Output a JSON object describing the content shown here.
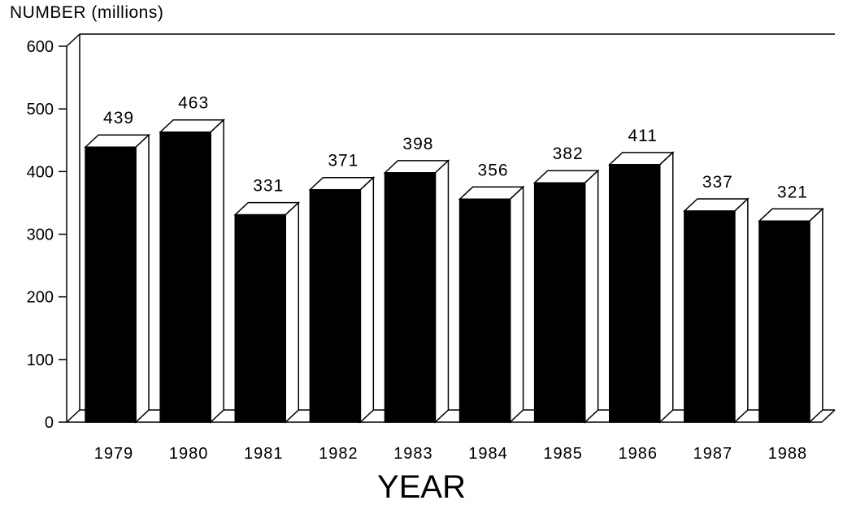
{
  "chart_data": {
    "type": "bar",
    "style": "3d",
    "categories": [
      "1979",
      "1980",
      "1981",
      "1982",
      "1983",
      "1984",
      "1985",
      "1986",
      "1987",
      "1988"
    ],
    "values": [
      439,
      463,
      331,
      371,
      398,
      356,
      382,
      411,
      337,
      321
    ],
    "data_labels": [
      "439",
      "463",
      "331",
      "371",
      "398",
      "356",
      "382",
      "411",
      "337",
      "321"
    ],
    "ylabel": "NUMBER (millions)",
    "xlabel": "YEAR",
    "yticks": [
      "0",
      "100",
      "200",
      "300",
      "400",
      "500",
      "600"
    ],
    "ylim": [
      0,
      600
    ],
    "grid": false,
    "bar_color": "#000000"
  }
}
